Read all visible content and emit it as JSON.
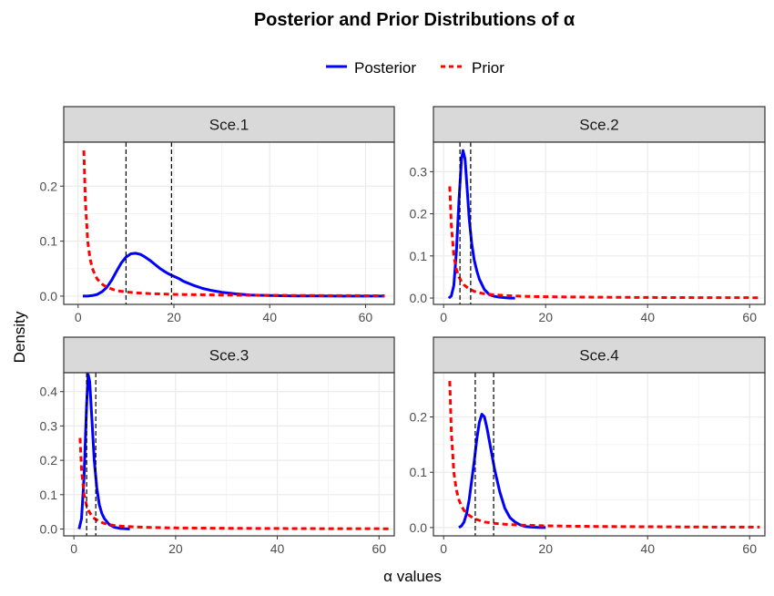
{
  "title": "Posterior and Prior Distributions of α",
  "legend": {
    "items": [
      {
        "name": "Posterior",
        "color": "#0000ff",
        "style": "solid"
      },
      {
        "name": "Prior",
        "color": "#ff0000",
        "style": "dashed"
      }
    ]
  },
  "axes": {
    "xlabel": "α values",
    "ylabel": "Density"
  },
  "chart_data": {
    "type": "line",
    "title": "Posterior and Prior Distributions of α",
    "xlabel": "α values",
    "ylabel": "Density",
    "legend_position": "top",
    "grid": true,
    "panels": [
      {
        "label": "Sce.1",
        "xlim": [
          -3,
          66
        ],
        "ylim": [
          -0.015,
          0.28
        ],
        "xticks": [
          0,
          20,
          40,
          60
        ],
        "yticks": [
          0.0,
          0.1,
          0.2
        ],
        "ytick_labels": [
          "0.0",
          "0.1",
          "0.2"
        ],
        "vlines": [
          10,
          19.5
        ],
        "series": [
          {
            "name": "Posterior",
            "x": [
              1,
              2,
              3,
              4,
              5,
              6,
              7,
              8,
              9,
              10,
              11,
              12,
              13,
              14,
              15,
              16,
              17,
              18,
              19,
              20,
              21,
              22,
              24,
              26,
              28,
              30,
              33,
              36,
              40,
              45,
              50,
              55,
              60,
              64
            ],
            "y": [
              0,
              0,
              0.001,
              0.003,
              0.008,
              0.016,
              0.029,
              0.045,
              0.06,
              0.071,
              0.077,
              0.078,
              0.076,
              0.071,
              0.065,
              0.058,
              0.051,
              0.045,
              0.04,
              0.036,
              0.032,
              0.027,
              0.02,
              0.014,
              0.01,
              0.007,
              0.004,
              0.002,
              0.001,
              0.0004,
              0.0002,
              0.0001,
              0,
              0
            ]
          },
          {
            "name": "Prior",
            "x": [
              1.2,
              1.5,
              2,
              2.5,
              3,
              3.5,
              4,
              5,
              6,
              7,
              8,
              10,
              12,
              15,
              20,
              25,
              30,
              40,
              50,
              64
            ],
            "y": [
              0.265,
              0.175,
              0.1,
              0.068,
              0.05,
              0.039,
              0.031,
              0.022,
              0.016,
              0.013,
              0.01,
              0.0075,
              0.006,
              0.0045,
              0.0032,
              0.0025,
              0.002,
              0.0014,
              0.001,
              0.0008
            ]
          }
        ]
      },
      {
        "label": "Sce.2",
        "xlim": [
          -2,
          63
        ],
        "ylim": [
          -0.015,
          0.37
        ],
        "xticks": [
          0,
          20,
          40,
          60
        ],
        "yticks": [
          0.0,
          0.1,
          0.2,
          0.3
        ],
        "ytick_labels": [
          "0.0",
          "0.1",
          "0.2",
          "0.3"
        ],
        "vlines": [
          3.2,
          5.3
        ],
        "series": [
          {
            "name": "Posterior",
            "x": [
              1,
              1.5,
              2,
              2.5,
              3,
              3.5,
              3.8,
              4.2,
              4.6,
              5,
              5.5,
              6,
              6.5,
              7,
              8,
              9,
              10,
              11,
              12,
              13,
              14
            ],
            "y": [
              0,
              0.005,
              0.03,
              0.11,
              0.23,
              0.33,
              0.35,
              0.33,
              0.26,
              0.19,
              0.13,
              0.09,
              0.065,
              0.045,
              0.02,
              0.008,
              0.004,
              0.002,
              0.001,
              0,
              0
            ]
          },
          {
            "name": "Prior",
            "x": [
              1.2,
              1.5,
              2,
              2.5,
              3,
              3.5,
              4,
              5,
              6,
              7,
              8,
              10,
              12,
              15,
              20,
              25,
              30,
              40,
              50,
              62
            ],
            "y": [
              0.265,
              0.175,
              0.1,
              0.068,
              0.05,
              0.039,
              0.031,
              0.022,
              0.016,
              0.013,
              0.01,
              0.0075,
              0.006,
              0.0045,
              0.0032,
              0.0025,
              0.002,
              0.0014,
              0.001,
              0.0008
            ]
          }
        ]
      },
      {
        "label": "Sce.3",
        "xlim": [
          -2,
          63
        ],
        "ylim": [
          -0.02,
          0.455
        ],
        "xticks": [
          0,
          20,
          40,
          60
        ],
        "yticks": [
          0.0,
          0.1,
          0.2,
          0.3,
          0.4
        ],
        "ytick_labels": [
          "0.0",
          "0.1",
          "0.2",
          "0.3",
          "0.4"
        ],
        "vlines": [
          2.5,
          4.3
        ],
        "series": [
          {
            "name": "Posterior",
            "x": [
              1,
              1.5,
              2,
              2.5,
              2.8,
              3.1,
              3.5,
              4,
              4.5,
              5,
              5.5,
              6,
              7,
              8,
              9,
              10,
              11
            ],
            "y": [
              0,
              0.03,
              0.15,
              0.36,
              0.45,
              0.43,
              0.33,
              0.2,
              0.12,
              0.07,
              0.045,
              0.03,
              0.012,
              0.005,
              0.002,
              0.001,
              0
            ]
          },
          {
            "name": "Prior",
            "x": [
              1.2,
              1.5,
              2,
              2.5,
              3,
              3.5,
              4,
              5,
              6,
              7,
              8,
              10,
              12,
              15,
              20,
              25,
              30,
              40,
              50,
              62
            ],
            "y": [
              0.265,
              0.175,
              0.1,
              0.068,
              0.05,
              0.039,
              0.031,
              0.022,
              0.016,
              0.013,
              0.01,
              0.0075,
              0.006,
              0.0045,
              0.0032,
              0.0025,
              0.002,
              0.0014,
              0.001,
              0.0008
            ]
          }
        ]
      },
      {
        "label": "Sce.4",
        "xlim": [
          -2,
          63
        ],
        "ylim": [
          -0.015,
          0.28
        ],
        "xticks": [
          0,
          20,
          40,
          60
        ],
        "yticks": [
          0.0,
          0.1,
          0.2
        ],
        "ytick_labels": [
          "0.0",
          "0.1",
          "0.2"
        ],
        "vlines": [
          6.2,
          9.8
        ],
        "series": [
          {
            "name": "Posterior",
            "x": [
              3,
              3.5,
              4,
              4.5,
              5,
              5.5,
              6,
              6.5,
              7,
              7.5,
              8,
              8.5,
              9,
              9.5,
              10,
              10.5,
              11,
              12,
              13,
              14,
              15,
              16,
              17,
              18,
              19,
              20
            ],
            "y": [
              0,
              0.003,
              0.01,
              0.025,
              0.05,
              0.085,
              0.12,
              0.16,
              0.19,
              0.205,
              0.2,
              0.18,
              0.155,
              0.13,
              0.105,
              0.085,
              0.065,
              0.035,
              0.018,
              0.01,
              0.005,
              0.002,
              0.001,
              0.0005,
              0,
              0
            ]
          },
          {
            "name": "Prior",
            "x": [
              1.2,
              1.5,
              2,
              2.5,
              3,
              3.5,
              4,
              5,
              6,
              7,
              8,
              10,
              12,
              15,
              20,
              25,
              30,
              40,
              50,
              62
            ],
            "y": [
              0.265,
              0.175,
              0.1,
              0.068,
              0.05,
              0.039,
              0.031,
              0.022,
              0.016,
              0.013,
              0.01,
              0.0075,
              0.006,
              0.0045,
              0.0032,
              0.0025,
              0.002,
              0.0014,
              0.001,
              0.0008
            ]
          }
        ]
      }
    ]
  }
}
